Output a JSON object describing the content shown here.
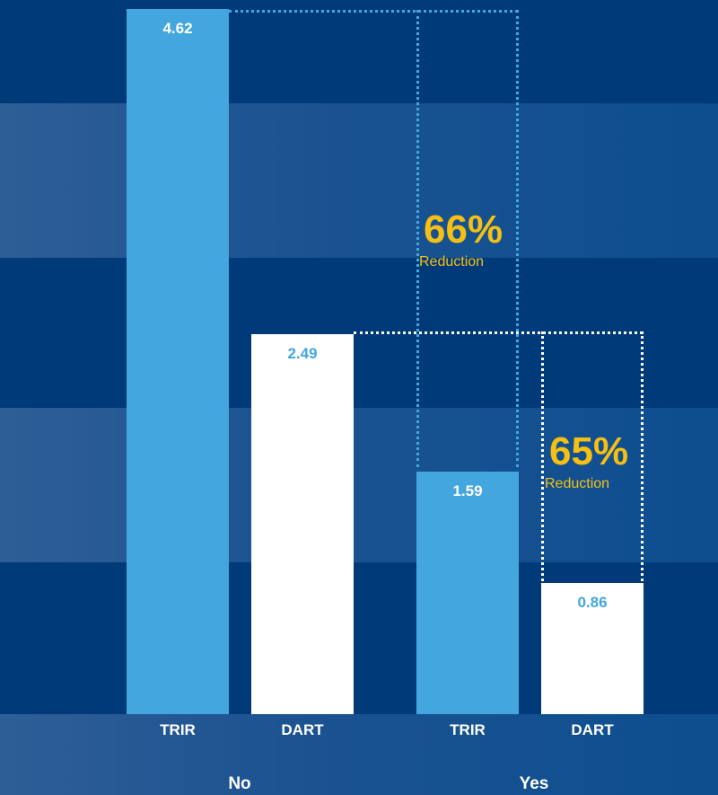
{
  "chart_data": {
    "type": "bar",
    "groups": [
      {
        "name": "No",
        "bars": [
          {
            "category": "TRIR",
            "value": 4.62
          },
          {
            "category": "DART",
            "value": 2.49
          }
        ]
      },
      {
        "name": "Yes",
        "bars": [
          {
            "category": "TRIR",
            "value": 1.59
          },
          {
            "category": "DART",
            "value": 0.86
          }
        ]
      }
    ],
    "title": "",
    "xlabel": "",
    "ylabel": "",
    "ylim": [
      0,
      4.62
    ],
    "grid": false,
    "annotations": [
      {
        "value": "66%",
        "text": "Reduction",
        "applies_to": "TRIR"
      },
      {
        "value": "65%",
        "text": "Reduction",
        "applies_to": "DART"
      }
    ]
  },
  "colors": {
    "trir": "#44a6de",
    "dart": "#ffffff",
    "highlight": "#f5c013",
    "background_dark": "#003a78",
    "background_light": "#1c5391"
  }
}
